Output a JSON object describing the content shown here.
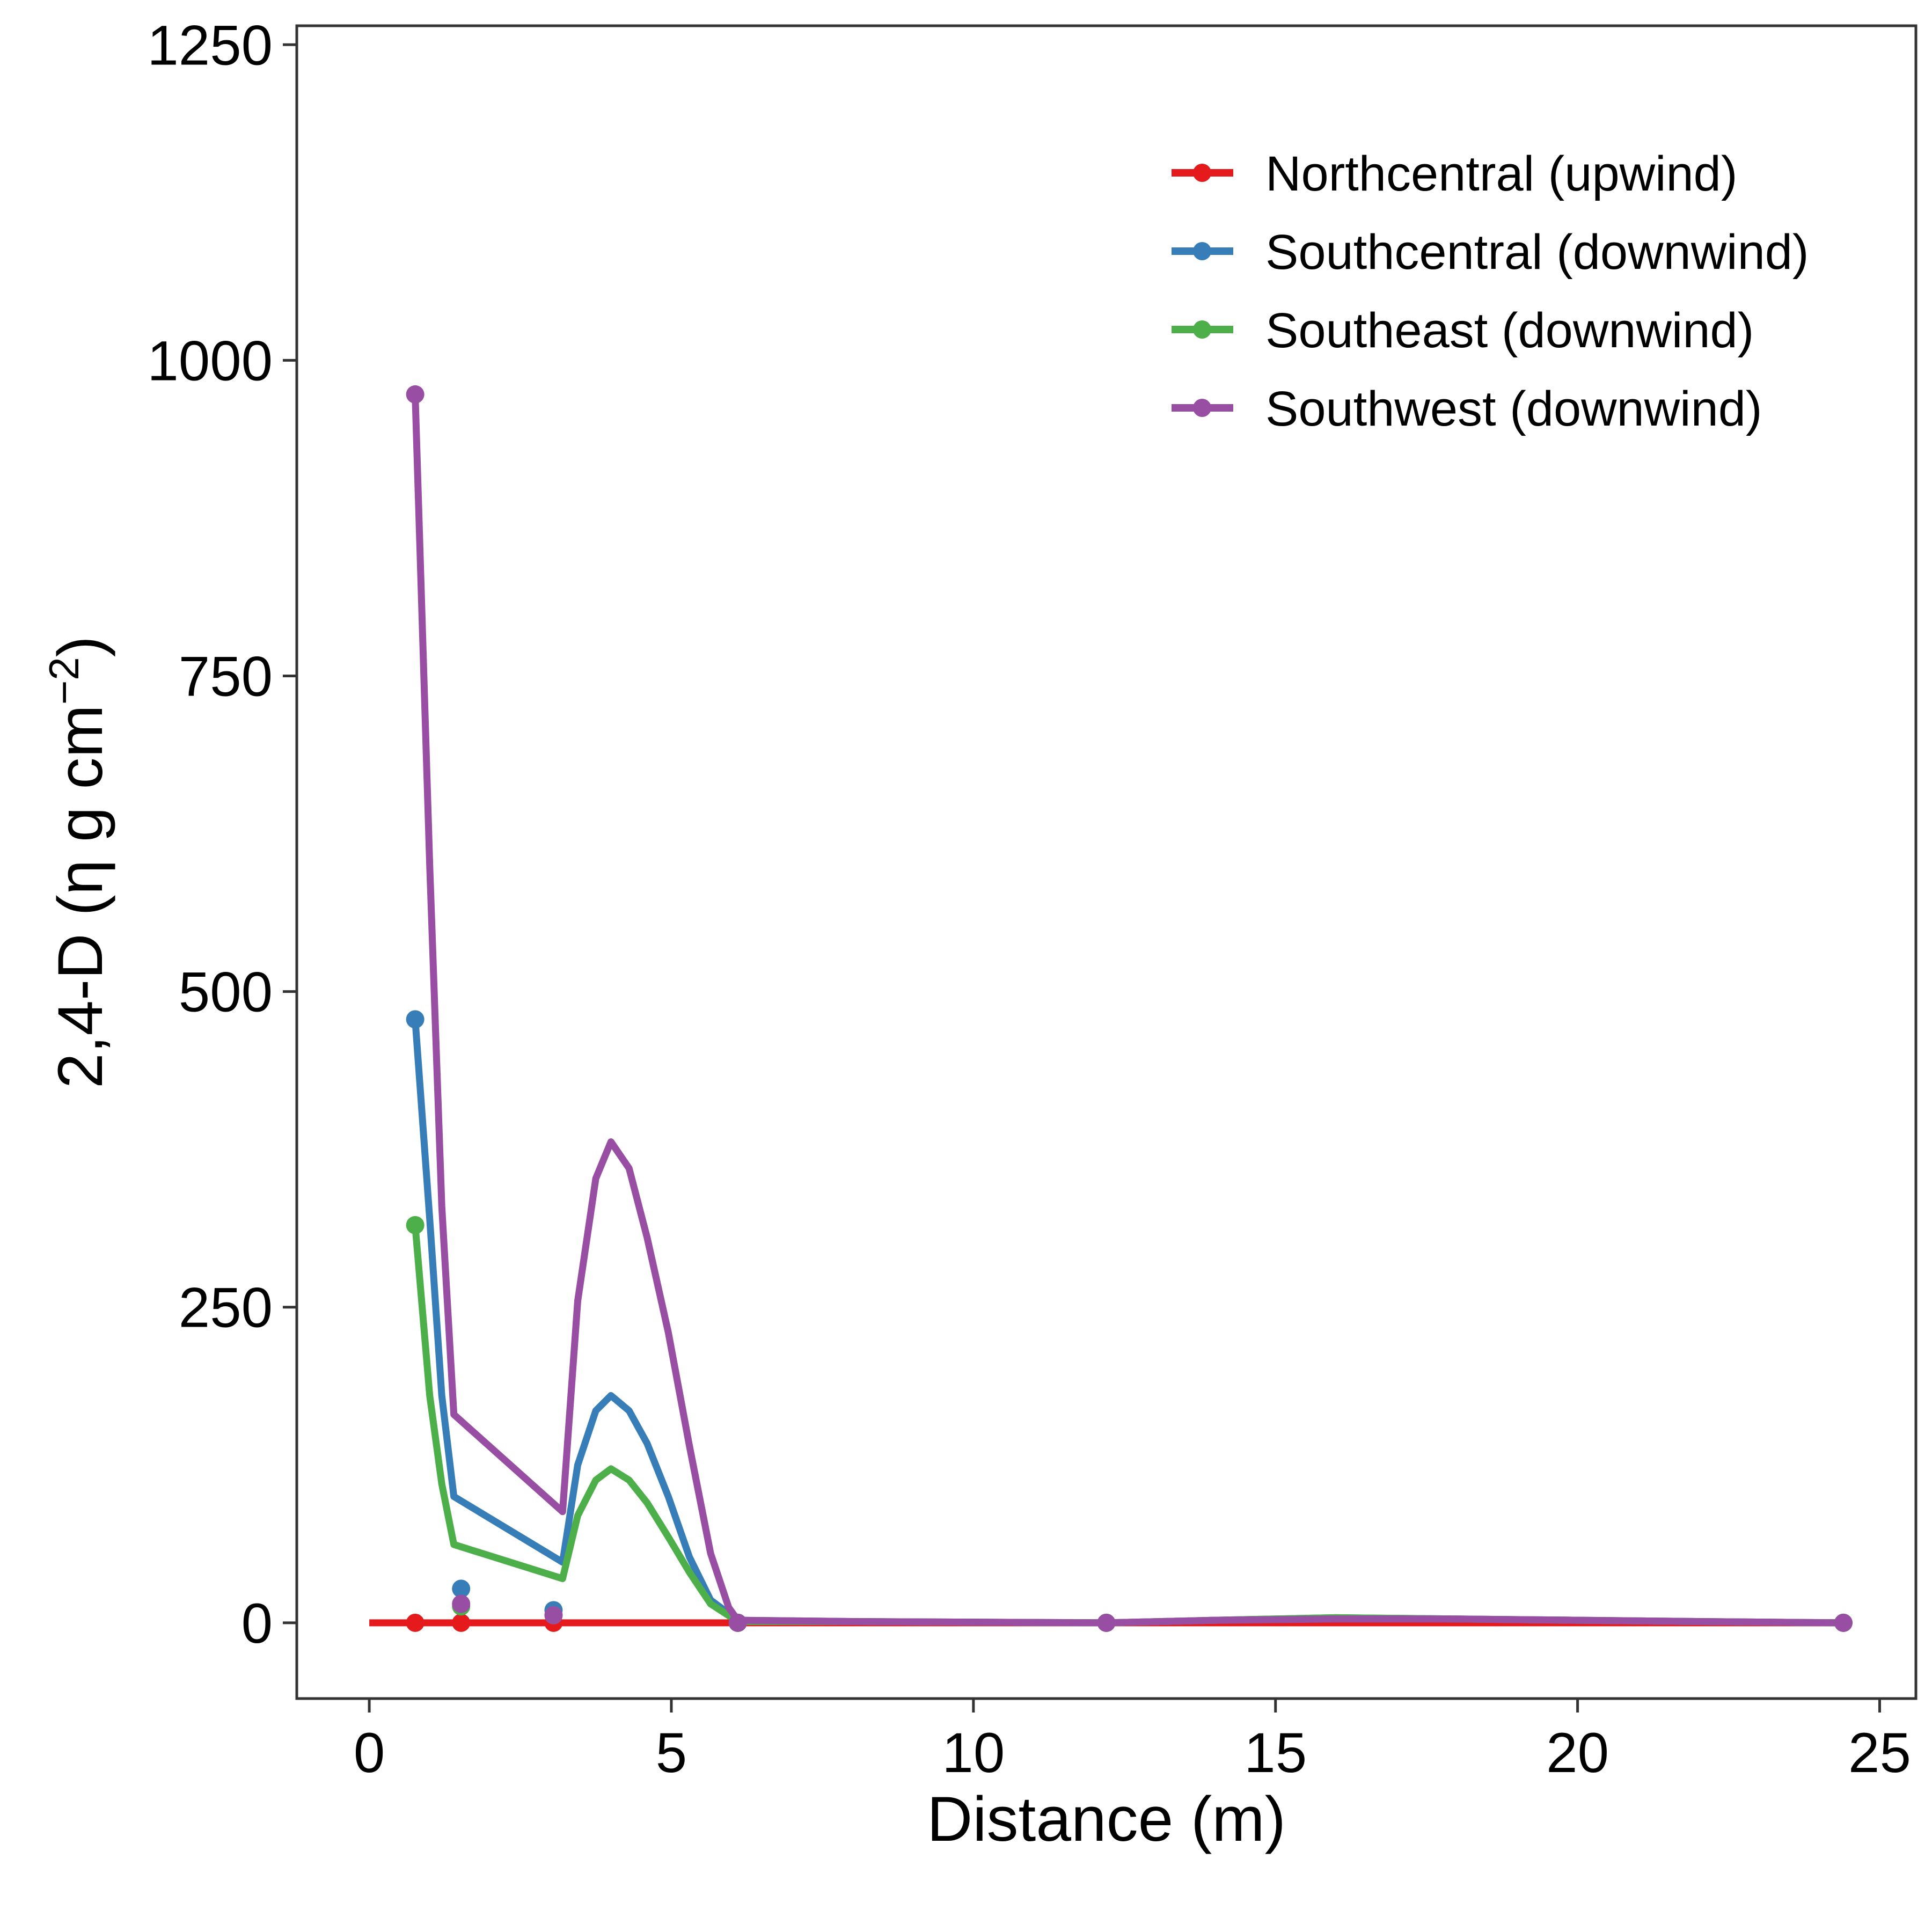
{
  "chart_data": {
    "type": "line",
    "xlabel": "Distance (m)",
    "ylabel_main": "2,4-D (η g cm",
    "ylabel_sup": "−2",
    "ylabel_close": ")",
    "xlim": [
      -1.2,
      25.6
    ],
    "ylim": [
      -60,
      1265
    ],
    "x_ticks": [
      0,
      5,
      10,
      15,
      20,
      25
    ],
    "x_tick_labels": [
      "0",
      "5",
      "10",
      "15",
      "20",
      "25"
    ],
    "y_ticks": [
      0,
      250,
      500,
      750,
      1000,
      1250
    ],
    "y_tick_labels": [
      "0",
      "250",
      "500",
      "750",
      "1000",
      "1250"
    ],
    "grid": false,
    "legend_position": "top-right",
    "series": [
      {
        "name": "Northcentral (upwind)",
        "color": "#e41a1c",
        "line": [
          [
            0,
            0
          ],
          [
            24.4,
            0
          ]
        ],
        "points": [
          [
            0.76,
            0
          ],
          [
            1.52,
            0
          ],
          [
            3.05,
            0
          ],
          [
            6.1,
            0
          ],
          [
            12.2,
            0
          ],
          [
            24.4,
            0
          ]
        ]
      },
      {
        "name": "Southcentral (downwind)",
        "color": "#377eb8",
        "line": [
          [
            0.76,
            478
          ],
          [
            1.0,
            320
          ],
          [
            1.2,
            180
          ],
          [
            1.4,
            100
          ],
          [
            3.2,
            48
          ],
          [
            3.45,
            125
          ],
          [
            3.75,
            168
          ],
          [
            4.0,
            180
          ],
          [
            4.3,
            168
          ],
          [
            4.6,
            142
          ],
          [
            4.95,
            100
          ],
          [
            5.3,
            52
          ],
          [
            5.65,
            18
          ],
          [
            6.1,
            2
          ],
          [
            8,
            1
          ],
          [
            12.2,
            0
          ],
          [
            14,
            2
          ],
          [
            16,
            4
          ],
          [
            18,
            3
          ],
          [
            20,
            2
          ],
          [
            22,
            1
          ],
          [
            24.4,
            0
          ]
        ],
        "points": [
          [
            0.76,
            478
          ],
          [
            1.52,
            27
          ],
          [
            3.05,
            10
          ],
          [
            6.1,
            0
          ],
          [
            12.2,
            0
          ],
          [
            24.4,
            0
          ]
        ]
      },
      {
        "name": "Southeast (downwind)",
        "color": "#4daf4a",
        "line": [
          [
            0.76,
            315
          ],
          [
            1.0,
            180
          ],
          [
            1.2,
            110
          ],
          [
            1.4,
            62
          ],
          [
            3.2,
            35
          ],
          [
            3.45,
            85
          ],
          [
            3.75,
            113
          ],
          [
            4.0,
            122
          ],
          [
            4.3,
            113
          ],
          [
            4.6,
            95
          ],
          [
            4.95,
            68
          ],
          [
            5.3,
            40
          ],
          [
            5.65,
            15
          ],
          [
            6.1,
            1
          ],
          [
            8,
            1
          ],
          [
            12.2,
            0
          ],
          [
            14,
            2
          ],
          [
            16,
            4
          ],
          [
            18,
            3
          ],
          [
            20,
            2
          ],
          [
            22,
            1
          ],
          [
            24.4,
            0
          ]
        ],
        "points": [
          [
            0.76,
            315
          ],
          [
            1.52,
            13
          ],
          [
            3.05,
            6
          ],
          [
            6.1,
            0
          ],
          [
            12.2,
            0
          ],
          [
            24.4,
            0
          ]
        ]
      },
      {
        "name": "Southwest (downwind)",
        "color": "#984ea3",
        "line": [
          [
            0.76,
            973
          ],
          [
            1.0,
            600
          ],
          [
            1.2,
            330
          ],
          [
            1.4,
            165
          ],
          [
            3.2,
            88
          ],
          [
            3.45,
            255
          ],
          [
            3.75,
            352
          ],
          [
            4.0,
            381
          ],
          [
            4.3,
            360
          ],
          [
            4.6,
            305
          ],
          [
            4.95,
            230
          ],
          [
            5.3,
            140
          ],
          [
            5.65,
            55
          ],
          [
            5.95,
            12
          ],
          [
            6.1,
            2
          ],
          [
            8,
            1
          ],
          [
            12.2,
            0
          ],
          [
            14,
            2
          ],
          [
            16,
            3
          ],
          [
            18,
            3
          ],
          [
            20,
            2
          ],
          [
            22,
            1
          ],
          [
            24.4,
            0
          ]
        ],
        "points": [
          [
            0.76,
            973
          ],
          [
            1.52,
            15
          ],
          [
            3.05,
            6
          ],
          [
            6.1,
            0
          ],
          [
            12.2,
            0
          ],
          [
            24.4,
            0
          ]
        ]
      }
    ]
  }
}
